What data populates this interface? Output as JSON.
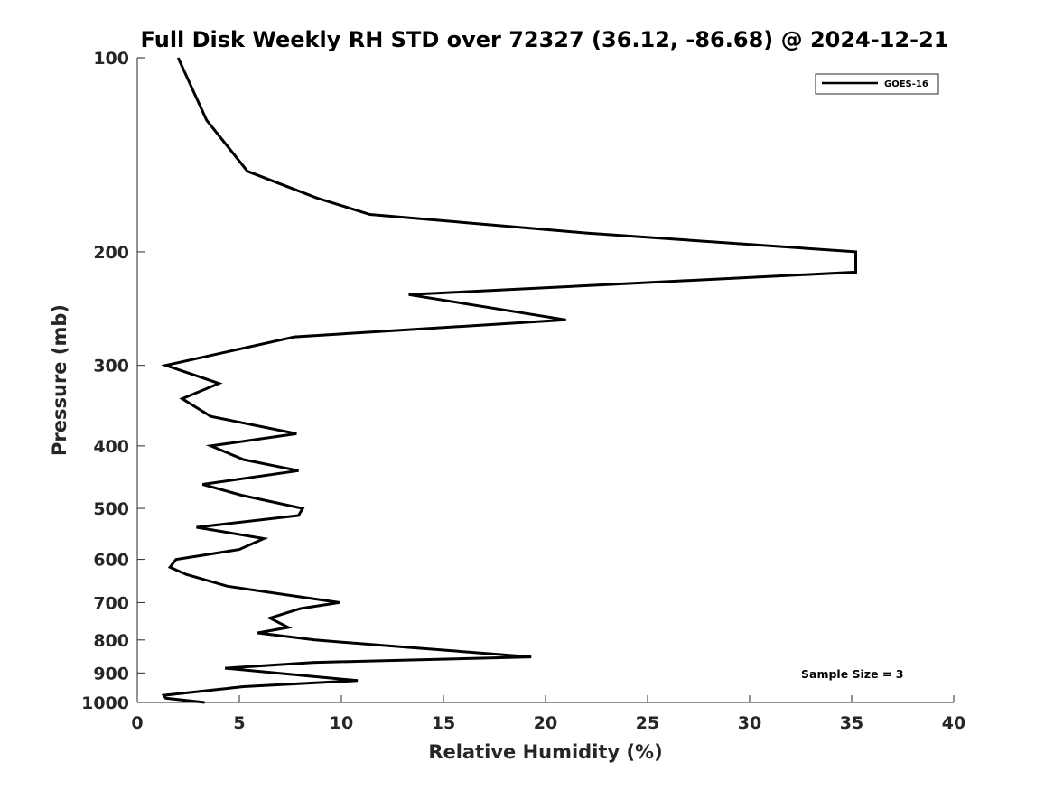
{
  "chart_data": {
    "type": "line",
    "title": "Full Disk Weekly RH STD over 72327 (36.12, -86.68) @ 2024-12-21",
    "xlabel": "Relative Humidity (%)",
    "ylabel": "Pressure (mb)",
    "xlim": [
      0,
      40
    ],
    "ylim": [
      100,
      1000
    ],
    "yscale": "log",
    "y_reversed": true,
    "xticks": [
      0,
      5,
      10,
      15,
      20,
      25,
      30,
      35,
      40
    ],
    "yticks": [
      100,
      200,
      300,
      400,
      500,
      600,
      700,
      800,
      900,
      1000
    ],
    "grid": false,
    "legend_position": "top-right",
    "annotation": "Sample Size = 3",
    "series": [
      {
        "name": "GOES-16",
        "color": "#000000",
        "points": [
          [
            2.0,
            100
          ],
          [
            3.4,
            125
          ],
          [
            5.4,
            150
          ],
          [
            8.8,
            165
          ],
          [
            11.4,
            175
          ],
          [
            22.0,
            187
          ],
          [
            35.2,
            200
          ],
          [
            35.2,
            215
          ],
          [
            13.3,
            233
          ],
          [
            21.0,
            255
          ],
          [
            7.7,
            271
          ],
          [
            1.4,
            300
          ],
          [
            4.0,
            320
          ],
          [
            2.2,
            338
          ],
          [
            3.6,
            360
          ],
          [
            7.8,
            383
          ],
          [
            3.6,
            400
          ],
          [
            5.2,
            420
          ],
          [
            7.9,
            437
          ],
          [
            3.2,
            459
          ],
          [
            5.1,
            477
          ],
          [
            8.1,
            500
          ],
          [
            7.9,
            513
          ],
          [
            2.9,
            535
          ],
          [
            6.2,
            557
          ],
          [
            5.0,
            579
          ],
          [
            1.9,
            600
          ],
          [
            1.6,
            617
          ],
          [
            2.4,
            633
          ],
          [
            4.4,
            660
          ],
          [
            9.9,
            700
          ],
          [
            8.0,
            715
          ],
          [
            6.5,
            740
          ],
          [
            7.4,
            765
          ],
          [
            5.9,
            780
          ],
          [
            8.7,
            800
          ],
          [
            13.0,
            820
          ],
          [
            19.3,
            850
          ],
          [
            8.6,
            867
          ],
          [
            4.3,
            885
          ],
          [
            10.8,
            925
          ],
          [
            5.2,
            945
          ],
          [
            1.3,
            975
          ],
          [
            1.4,
            985
          ],
          [
            3.3,
            1000
          ]
        ]
      }
    ]
  }
}
